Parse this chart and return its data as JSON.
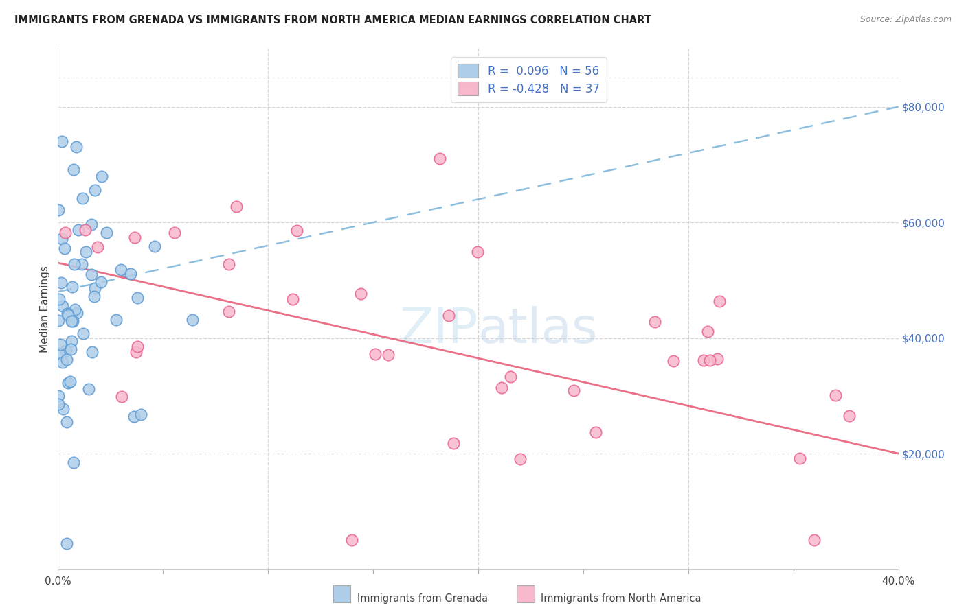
{
  "title": "IMMIGRANTS FROM GRENADA VS IMMIGRANTS FROM NORTH AMERICA MEDIAN EARNINGS CORRELATION CHART",
  "source": "Source: ZipAtlas.com",
  "ylabel": "Median Earnings",
  "R_grenada": 0.096,
  "N_grenada": 56,
  "R_north_america": -0.428,
  "N_north_america": 37,
  "color_grenada_fill": "#aecde8",
  "color_grenada_edge": "#5b9bd5",
  "color_na_fill": "#f7b8cb",
  "color_na_edge": "#e86090",
  "trend_blue_color": "#7ab3d9",
  "trend_pink_color": "#e8607a",
  "background_color": "#ffffff",
  "grid_color": "#cccccc",
  "right_yticks": [
    20000,
    40000,
    60000,
    80000
  ],
  "right_ytick_labels": [
    "$20,000",
    "$40,000",
    "$60,000",
    "$80,000"
  ],
  "ymax": 90000,
  "xmax": 0.4,
  "legend_blue_text": "R =  0.096   N = 56",
  "legend_pink_text": "R = -0.428   N = 37",
  "bottom_label_grenada": "Immigrants from Grenada",
  "bottom_label_na": "Immigrants from North America",
  "watermark": "ZIPatlas",
  "title_color": "#222222",
  "source_color": "#888888",
  "axis_label_color": "#444444",
  "tick_label_color": "#4472c4"
}
